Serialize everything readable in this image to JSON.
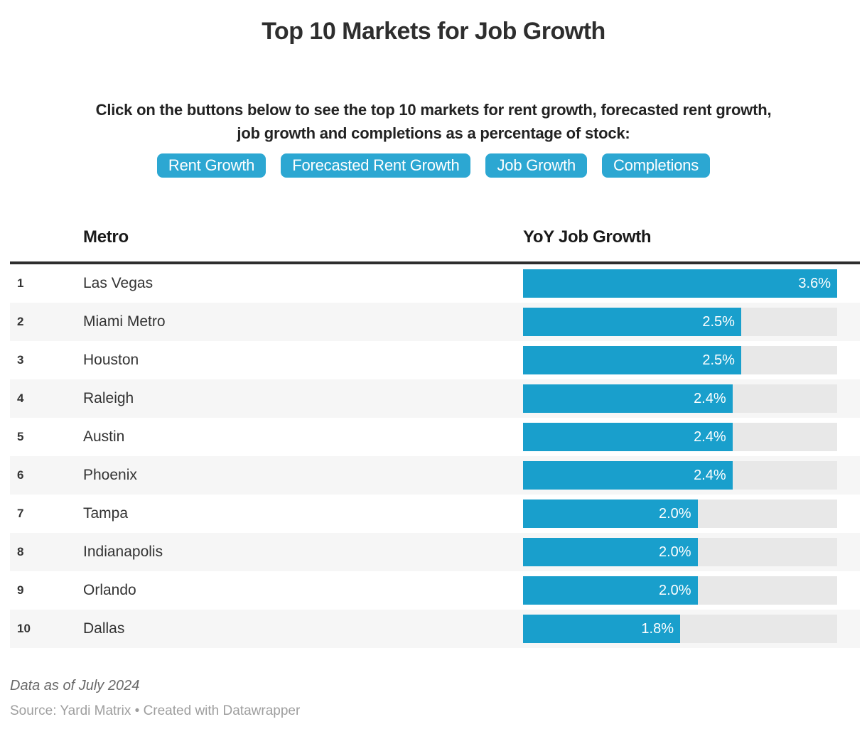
{
  "title": "Top 10 Markets for Job Growth",
  "description": {
    "line1": "Click on the buttons below to see the top 10 markets for rent growth, forecasted rent growth,",
    "line2": "job growth and completions as a percentage of stock:"
  },
  "buttons": [
    {
      "label": "Rent Growth"
    },
    {
      "label": "Forecasted Rent Growth"
    },
    {
      "label": "Job Growth"
    },
    {
      "label": "Completions"
    }
  ],
  "table": {
    "columns": {
      "metro": "Metro",
      "value": "YoY Job Growth"
    },
    "rows": [
      {
        "rank": "1",
        "metro": "Las Vegas",
        "value": 3.6,
        "label": "3.6%"
      },
      {
        "rank": "2",
        "metro": "Miami Metro",
        "value": 2.5,
        "label": "2.5%"
      },
      {
        "rank": "3",
        "metro": "Houston",
        "value": 2.5,
        "label": "2.5%"
      },
      {
        "rank": "4",
        "metro": "Raleigh",
        "value": 2.4,
        "label": "2.4%"
      },
      {
        "rank": "5",
        "metro": "Austin",
        "value": 2.4,
        "label": "2.4%"
      },
      {
        "rank": "6",
        "metro": "Phoenix",
        "value": 2.4,
        "label": "2.4%"
      },
      {
        "rank": "7",
        "metro": "Tampa",
        "value": 2.0,
        "label": "2.0%"
      },
      {
        "rank": "8",
        "metro": "Indianapolis",
        "value": 2.0,
        "label": "2.0%"
      },
      {
        "rank": "9",
        "metro": "Orlando",
        "value": 2.0,
        "label": "2.0%"
      },
      {
        "rank": "10",
        "metro": "Dallas",
        "value": 1.8,
        "label": "1.8%"
      }
    ]
  },
  "chart_data": {
    "type": "bar",
    "orientation": "horizontal",
    "title": "Top 10 Markets for Job Growth",
    "categories": [
      "Las Vegas",
      "Miami Metro",
      "Houston",
      "Raleigh",
      "Austin",
      "Phoenix",
      "Tampa",
      "Indianapolis",
      "Orlando",
      "Dallas"
    ],
    "series": [
      {
        "name": "YoY Job Growth",
        "values": [
          3.6,
          2.5,
          2.5,
          2.4,
          2.4,
          2.4,
          2.0,
          2.0,
          2.0,
          1.8
        ]
      }
    ],
    "value_labels": [
      "3.6%",
      "2.5%",
      "2.5%",
      "2.4%",
      "2.4%",
      "2.4%",
      "2.0%",
      "2.0%",
      "2.0%",
      "1.8%"
    ],
    "unit": "%",
    "xlim": [
      0,
      3.6
    ],
    "grid": "off",
    "legend": "none",
    "bar_color": "#199fcc",
    "track_color": "#e8e8e8"
  },
  "footer": {
    "note": "Data as of July 2024",
    "source": "Source: Yardi Matrix • Created with Datawrapper"
  },
  "colors": {
    "accent_button": "#2ca7d2",
    "bar": "#199fcc",
    "track": "#e8e8e8",
    "stripe": "#f6f6f6",
    "rule": "#2e2e2e",
    "title_text": "#2e2e2e",
    "note_text": "#696969",
    "source_text": "#9e9e9e",
    "bg": "#ffffff"
  }
}
